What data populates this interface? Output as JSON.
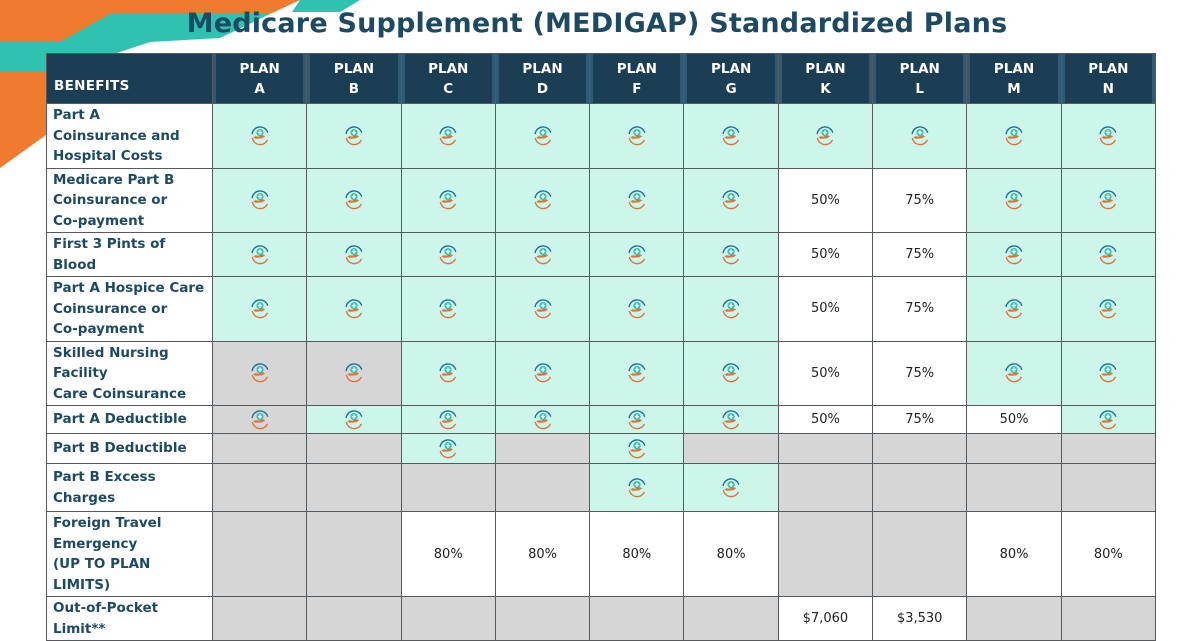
{
  "page": {
    "title": "Medicare Supplement (MEDIGAP) Standardized Plans"
  },
  "colors": {
    "header_bg": "#1b3e55",
    "title": "#1d4a63",
    "covered_bg": "#cdf6ea",
    "not_available_bg": "#d6d6d6",
    "accent_orange": "#f07a2e",
    "accent_teal": "#2ec3b1"
  },
  "icons": {
    "covered_marker": "medical-care-hand-icon"
  },
  "table": {
    "benefits_header": "BENEFITS",
    "plans": [
      {
        "word": "PLAN",
        "letter": "A"
      },
      {
        "word": "PLAN",
        "letter": "B"
      },
      {
        "word": "PLAN",
        "letter": "C"
      },
      {
        "word": "PLAN",
        "letter": "D"
      },
      {
        "word": "PLAN",
        "letter": "F"
      },
      {
        "word": "PLAN",
        "letter": "G"
      },
      {
        "word": "PLAN",
        "letter": "K"
      },
      {
        "word": "PLAN",
        "letter": "L"
      },
      {
        "word": "PLAN",
        "letter": "M"
      },
      {
        "word": "PLAN",
        "letter": "N"
      }
    ],
    "rows": [
      {
        "benefit": [
          "Part A",
          "Coinsurance and",
          "Hospital Costs"
        ],
        "cells": [
          {
            "bg": "mint",
            "icon": true
          },
          {
            "bg": "mint",
            "icon": true
          },
          {
            "bg": "mint",
            "icon": true
          },
          {
            "bg": "mint",
            "icon": true
          },
          {
            "bg": "mint",
            "icon": true
          },
          {
            "bg": "mint",
            "icon": true
          },
          {
            "bg": "mint",
            "icon": true
          },
          {
            "bg": "mint",
            "icon": true
          },
          {
            "bg": "mint",
            "icon": true
          },
          {
            "bg": "mint",
            "icon": true
          }
        ]
      },
      {
        "benefit": [
          "Medicare Part B",
          "Coinsurance or",
          "Co-payment"
        ],
        "cells": [
          {
            "bg": "mint",
            "icon": true
          },
          {
            "bg": "mint",
            "icon": true
          },
          {
            "bg": "mint",
            "icon": true
          },
          {
            "bg": "mint",
            "icon": true
          },
          {
            "bg": "mint",
            "icon": true
          },
          {
            "bg": "mint",
            "icon": true
          },
          {
            "bg": "white",
            "text": "50%"
          },
          {
            "bg": "white",
            "text": "75%"
          },
          {
            "bg": "mint",
            "icon": true
          },
          {
            "bg": "mint",
            "icon": true
          }
        ]
      },
      {
        "benefit": [
          "First 3 Pints of Blood"
        ],
        "cells": [
          {
            "bg": "mint",
            "icon": true
          },
          {
            "bg": "mint",
            "icon": true
          },
          {
            "bg": "mint",
            "icon": true
          },
          {
            "bg": "mint",
            "icon": true
          },
          {
            "bg": "mint",
            "icon": true
          },
          {
            "bg": "mint",
            "icon": true
          },
          {
            "bg": "white",
            "text": "50%"
          },
          {
            "bg": "white",
            "text": "75%"
          },
          {
            "bg": "mint",
            "icon": true
          },
          {
            "bg": "mint",
            "icon": true
          }
        ]
      },
      {
        "benefit": [
          "Part A Hospice Care",
          "Coinsurance or",
          "Co-payment"
        ],
        "cells": [
          {
            "bg": "mint",
            "icon": true
          },
          {
            "bg": "mint",
            "icon": true
          },
          {
            "bg": "mint",
            "icon": true
          },
          {
            "bg": "mint",
            "icon": true
          },
          {
            "bg": "mint",
            "icon": true
          },
          {
            "bg": "mint",
            "icon": true
          },
          {
            "bg": "white",
            "text": "50%"
          },
          {
            "bg": "white",
            "text": "75%"
          },
          {
            "bg": "mint",
            "icon": true
          },
          {
            "bg": "mint",
            "icon": true
          }
        ]
      },
      {
        "benefit": [
          "Skilled Nursing",
          "Facility",
          "Care Coinsurance"
        ],
        "cells": [
          {
            "bg": "gray",
            "icon": true
          },
          {
            "bg": "gray",
            "icon": true
          },
          {
            "bg": "mint",
            "icon": true
          },
          {
            "bg": "mint",
            "icon": true
          },
          {
            "bg": "mint",
            "icon": true
          },
          {
            "bg": "mint",
            "icon": true
          },
          {
            "bg": "white",
            "text": "50%"
          },
          {
            "bg": "white",
            "text": "75%"
          },
          {
            "bg": "mint",
            "icon": true
          },
          {
            "bg": "mint",
            "icon": true
          }
        ]
      },
      {
        "benefit": [
          "Part A Deductible"
        ],
        "cells": [
          {
            "bg": "gray",
            "icon": true
          },
          {
            "bg": "mint",
            "icon": true
          },
          {
            "bg": "mint",
            "icon": true
          },
          {
            "bg": "mint",
            "icon": true
          },
          {
            "bg": "mint",
            "icon": true
          },
          {
            "bg": "mint",
            "icon": true
          },
          {
            "bg": "white",
            "text": "50%"
          },
          {
            "bg": "white",
            "text": "75%"
          },
          {
            "bg": "white",
            "text": "50%"
          },
          {
            "bg": "mint",
            "icon": true
          }
        ]
      },
      {
        "benefit": [
          "Part B Deductible"
        ],
        "cells": [
          {
            "bg": "gray"
          },
          {
            "bg": "gray"
          },
          {
            "bg": "mint",
            "icon": true
          },
          {
            "bg": "gray"
          },
          {
            "bg": "mint",
            "icon": true
          },
          {
            "bg": "gray"
          },
          {
            "bg": "gray"
          },
          {
            "bg": "gray"
          },
          {
            "bg": "gray"
          },
          {
            "bg": "gray"
          }
        ]
      },
      {
        "benefit": [
          "Part B Excess",
          "Charges"
        ],
        "cells": [
          {
            "bg": "gray"
          },
          {
            "bg": "gray"
          },
          {
            "bg": "gray"
          },
          {
            "bg": "gray"
          },
          {
            "bg": "mint",
            "icon": true
          },
          {
            "bg": "mint",
            "icon": true
          },
          {
            "bg": "gray"
          },
          {
            "bg": "gray"
          },
          {
            "bg": "gray"
          },
          {
            "bg": "gray"
          }
        ]
      },
      {
        "benefit": [
          "Foreign Travel",
          "Emergency",
          "(UP TO PLAN LIMITS)"
        ],
        "cells": [
          {
            "bg": "gray"
          },
          {
            "bg": "gray"
          },
          {
            "bg": "white",
            "text": "80%"
          },
          {
            "bg": "white",
            "text": "80%"
          },
          {
            "bg": "white",
            "text": "80%"
          },
          {
            "bg": "white",
            "text": "80%"
          },
          {
            "bg": "gray"
          },
          {
            "bg": "gray"
          },
          {
            "bg": "white",
            "text": "80%"
          },
          {
            "bg": "white",
            "text": "80%"
          }
        ]
      },
      {
        "benefit": [
          "Out-of-Pocket",
          "Limit**"
        ],
        "cells": [
          {
            "bg": "gray"
          },
          {
            "bg": "gray"
          },
          {
            "bg": "gray"
          },
          {
            "bg": "gray"
          },
          {
            "bg": "gray"
          },
          {
            "bg": "gray"
          },
          {
            "bg": "white",
            "text": "$7,060"
          },
          {
            "bg": "white",
            "text": "$3,530"
          },
          {
            "bg": "gray"
          },
          {
            "bg": "gray"
          }
        ]
      }
    ]
  }
}
